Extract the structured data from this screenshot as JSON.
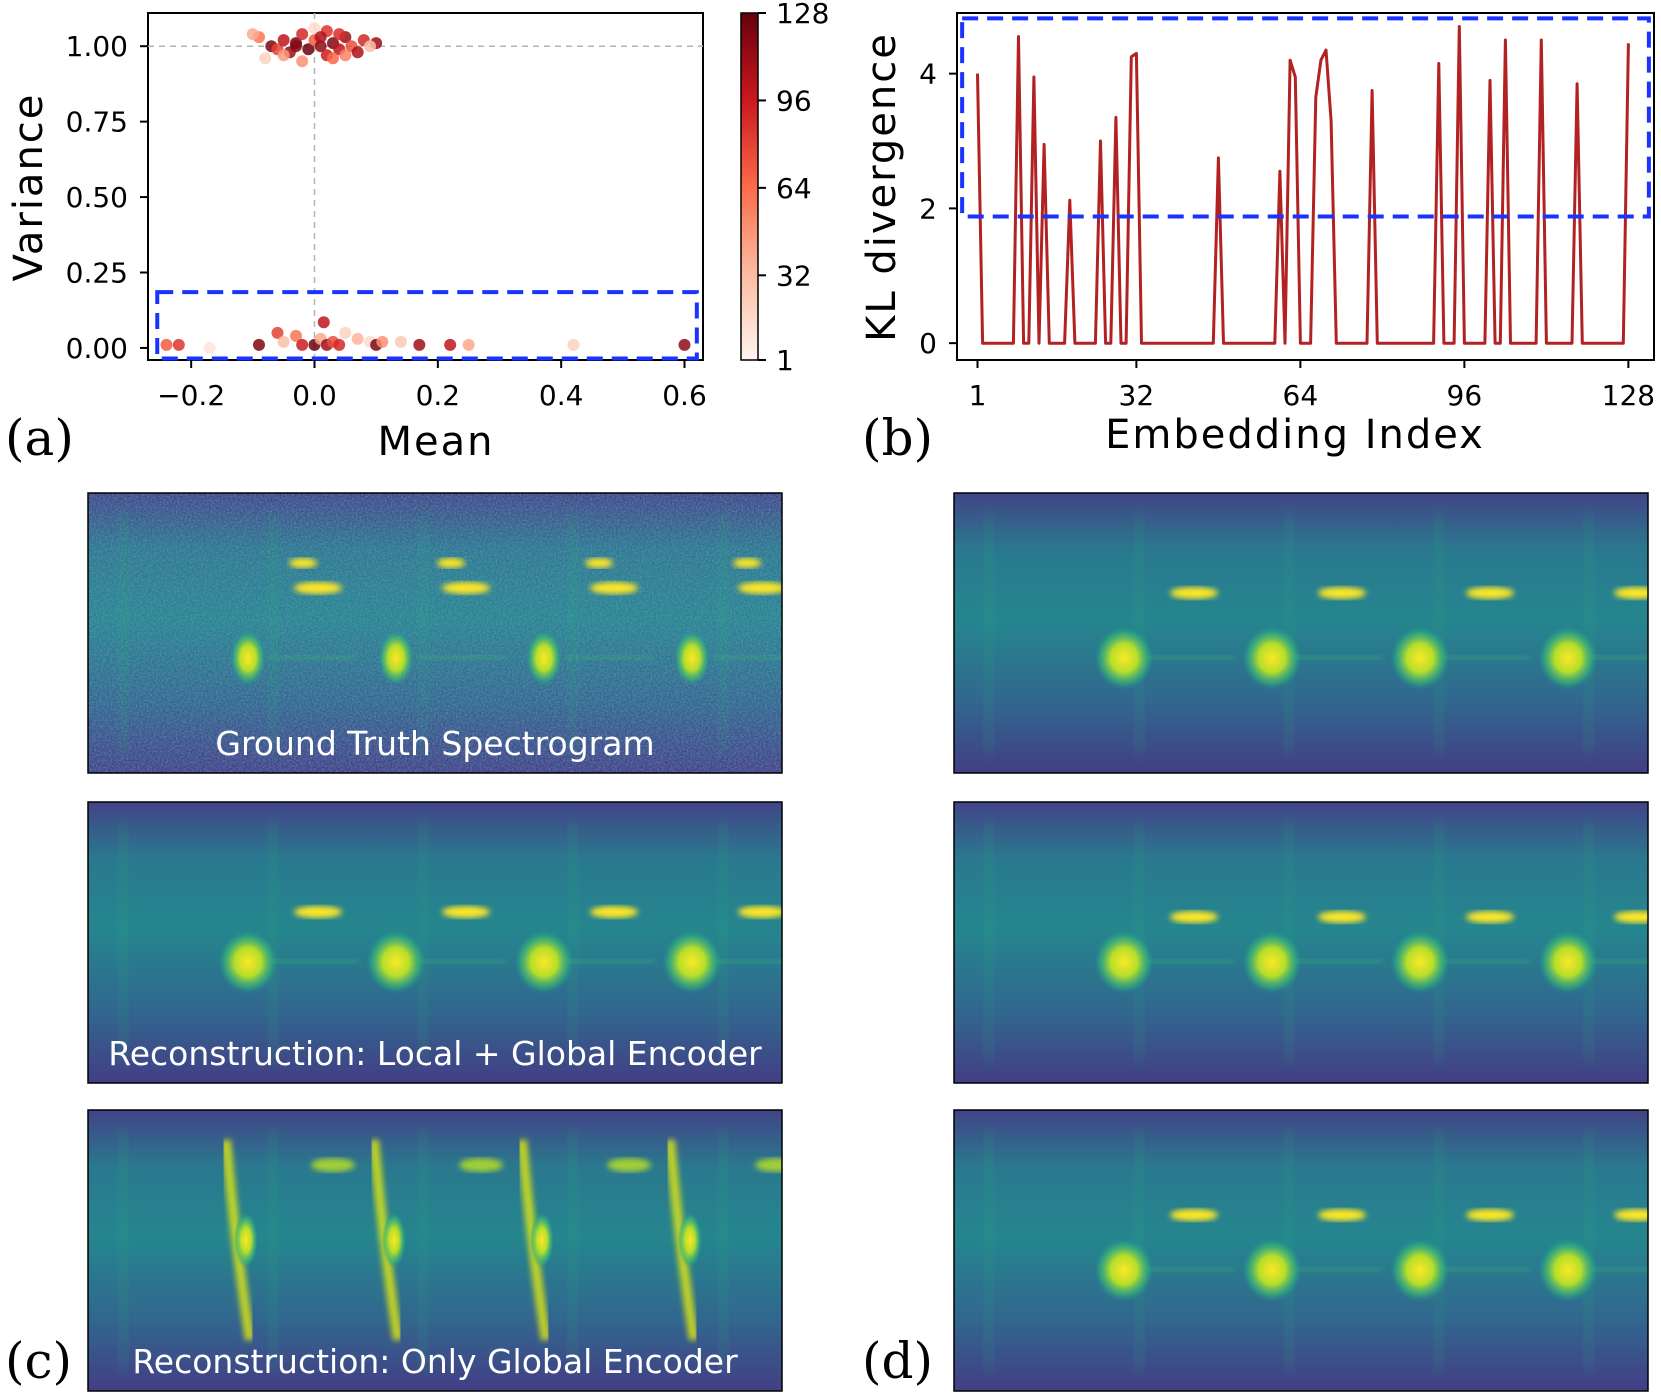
{
  "panel_labels": {
    "a": "(a)",
    "b": "(b)",
    "c": "(c)",
    "d": "(d)"
  },
  "colors": {
    "red_line": "#b22222",
    "highlight_box": "#1a33ff",
    "gridline": "#b3b3b3",
    "viridis_dark": "#3e4a89",
    "viridis_mid": "#26828e",
    "viridis_bright": "#fde725"
  },
  "chart_data": [
    {
      "type": "scatter",
      "panel": "a",
      "xlabel": "Mean",
      "ylabel": "Variance",
      "xlim": [
        -0.27,
        0.63
      ],
      "ylim": [
        -0.04,
        1.11
      ],
      "xticks": [
        -0.2,
        0.0,
        0.2,
        0.4,
        0.6
      ],
      "xtick_labels": [
        "−0.2",
        "0.0",
        "0.2",
        "0.4",
        "0.6"
      ],
      "yticks": [
        0.0,
        0.25,
        0.5,
        0.75,
        1.0
      ],
      "ytick_labels": [
        "0.00",
        "0.25",
        "0.50",
        "0.75",
        "1.00"
      ],
      "reference_lines": {
        "x": 0.0,
        "y": 1.0
      },
      "colorbar": {
        "min": 1,
        "max": 128,
        "ticks": [
          1,
          32,
          64,
          96,
          128
        ],
        "tick_labels": [
          "1",
          "32",
          "64",
          "96",
          "128"
        ],
        "colormap": "Reds"
      },
      "highlight_box": {
        "x": [
          -0.255,
          0.62
        ],
        "y": [
          -0.035,
          0.185
        ]
      },
      "points_high_variance": [
        [
          -0.09,
          1.03,
          60
        ],
        [
          -0.07,
          1.0,
          120
        ],
        [
          -0.06,
          0.99,
          80
        ],
        [
          -0.05,
          1.02,
          100
        ],
        [
          -0.04,
          0.98,
          110
        ],
        [
          -0.03,
          1.01,
          125
        ],
        [
          -0.02,
          1.04,
          90
        ],
        [
          -0.01,
          0.99,
          128
        ],
        [
          0.0,
          1.02,
          70
        ],
        [
          0.01,
          1.0,
          115
        ],
        [
          0.02,
          0.97,
          95
        ],
        [
          0.02,
          1.05,
          85
        ],
        [
          0.03,
          1.01,
          120
        ],
        [
          0.04,
          0.99,
          100
        ],
        [
          0.05,
          1.03,
          110
        ],
        [
          0.06,
          1.0,
          75
        ],
        [
          0.07,
          0.98,
          105
        ],
        [
          0.08,
          1.02,
          90
        ],
        [
          -0.08,
          0.96,
          20
        ],
        [
          -0.1,
          1.04,
          40
        ],
        [
          0.0,
          1.06,
          15
        ],
        [
          -0.02,
          0.95,
          50
        ],
        [
          0.03,
          0.96,
          65
        ],
        [
          0.1,
          1.01,
          110
        ],
        [
          0.09,
          1.0,
          30
        ],
        [
          -0.05,
          0.97,
          45
        ],
        [
          0.05,
          0.97,
          55
        ],
        [
          0.01,
          1.03,
          105
        ],
        [
          -0.03,
          1.0,
          118
        ],
        [
          0.04,
          1.04,
          88
        ]
      ],
      "points_low_variance": [
        [
          -0.24,
          0.01,
          70
        ],
        [
          -0.22,
          0.01,
          85
        ],
        [
          -0.17,
          0.0,
          10
        ],
        [
          -0.09,
          0.01,
          120
        ],
        [
          -0.06,
          0.05,
          80
        ],
        [
          -0.05,
          0.02,
          30
        ],
        [
          -0.03,
          0.04,
          60
        ],
        [
          -0.02,
          0.01,
          95
        ],
        [
          0.0,
          0.01,
          128
        ],
        [
          0.01,
          0.03,
          40
        ],
        [
          0.015,
          0.085,
          100
        ],
        [
          0.02,
          0.01,
          110
        ],
        [
          0.03,
          0.02,
          75
        ],
        [
          0.04,
          0.01,
          90
        ],
        [
          0.05,
          0.05,
          20
        ],
        [
          0.07,
          0.03,
          35
        ],
        [
          0.09,
          0.02,
          15
        ],
        [
          0.1,
          0.01,
          120
        ],
        [
          0.11,
          0.02,
          50
        ],
        [
          0.14,
          0.02,
          25
        ],
        [
          0.17,
          0.01,
          110
        ],
        [
          0.22,
          0.01,
          100
        ],
        [
          0.25,
          0.01,
          40
        ],
        [
          0.42,
          0.01,
          20
        ],
        [
          0.6,
          0.01,
          115
        ]
      ]
    },
    {
      "type": "line",
      "panel": "b",
      "xlabel": "Embedding Index",
      "ylabel": "KL divergence",
      "xlim": [
        -3,
        133
      ],
      "ylim": [
        -0.25,
        4.9
      ],
      "xticks": [
        1,
        32,
        64,
        96,
        128
      ],
      "xtick_labels": [
        "1",
        "32",
        "64",
        "96",
        "128"
      ],
      "yticks": [
        0,
        2,
        4
      ],
      "ytick_labels": [
        "0",
        "2",
        "4"
      ],
      "highlight_box": {
        "x": [
          -2,
          132
        ],
        "y": [
          1.88,
          4.82
        ]
      },
      "peaks": [
        [
          1,
          4.0
        ],
        [
          9,
          4.55
        ],
        [
          12,
          3.95
        ],
        [
          14,
          2.95
        ],
        [
          19,
          2.12
        ],
        [
          25,
          3.0
        ],
        [
          28,
          3.35
        ],
        [
          31,
          4.25
        ],
        [
          32,
          4.3
        ],
        [
          48,
          2.75
        ],
        [
          60,
          2.55
        ],
        [
          62,
          4.2
        ],
        [
          63,
          3.95
        ],
        [
          67,
          3.65
        ],
        [
          68,
          4.2
        ],
        [
          69,
          4.35
        ],
        [
          70,
          3.3
        ],
        [
          78,
          3.75
        ],
        [
          91,
          4.15
        ],
        [
          95,
          4.7
        ],
        [
          101,
          3.9
        ],
        [
          104,
          4.5
        ],
        [
          111,
          4.5
        ],
        [
          118,
          3.85
        ],
        [
          128,
          4.45
        ]
      ]
    }
  ],
  "spectrograms": [
    {
      "id": "gt",
      "caption": "Ground Truth Spectrogram",
      "noisy": true,
      "curved_syllables": false
    },
    {
      "id": "local-global",
      "caption": "Reconstruction: Local + Global Encoder",
      "noisy": false,
      "curved_syllables": false
    },
    {
      "id": "global-only",
      "caption": "Reconstruction: Only Global Encoder",
      "noisy": false,
      "curved_syllables": true
    },
    {
      "id": "d-top",
      "caption": "",
      "noisy": false,
      "curved_syllables": false
    },
    {
      "id": "d-mid",
      "caption": "",
      "noisy": false,
      "curved_syllables": false
    },
    {
      "id": "d-bottom",
      "caption": "",
      "noisy": false,
      "curved_syllables": false
    }
  ]
}
